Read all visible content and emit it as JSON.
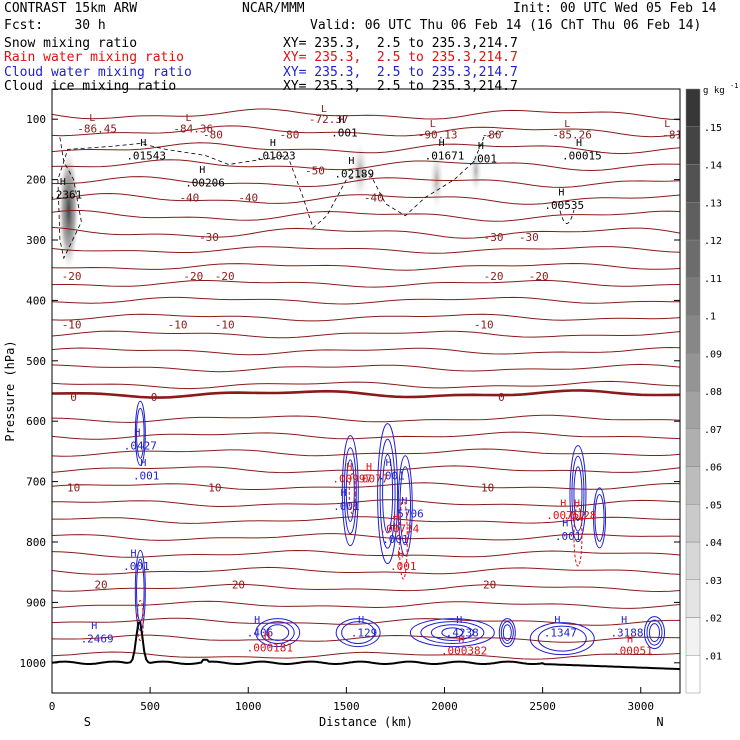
{
  "header": {
    "left1": "CONTRAST 15km ARW",
    "center1": "NCAR/MMM",
    "right1": "Init: 00 UTC Wed 05 Feb 14",
    "left2": "Fcst:    30 h",
    "right2": "Valid: 06 UTC Thu 06 Feb 14 (16 ChT Thu 06 Feb 14)",
    "legend": [
      {
        "label": "Snow mixing ratio",
        "xy": "XY= 235.3,  2.5 to 235.3,214.7",
        "color": "#000000"
      },
      {
        "label": "Rain water mixing ratio",
        "xy": "XY= 235.3,  2.5 to 235.3,214.7",
        "color": "#e01010"
      },
      {
        "label": "Cloud water mixing ratio",
        "xy": "XY= 235.3,  2.5 to 235.3,214.7",
        "color": "#1f1fd0"
      },
      {
        "label": "Cloud ice mixing ratio",
        "xy": "XY= 235.3,  2.5 to 235.3,214.7",
        "color": "#000000"
      }
    ]
  },
  "chart_data": {
    "type": "contour",
    "xlabel": "Distance (km)",
    "ylabel": "Pressure (hPa)",
    "xlim": [
      0,
      3200
    ],
    "ylim": [
      1050,
      50
    ],
    "x_ticks": [
      0,
      500,
      1000,
      1500,
      2000,
      2500,
      3000
    ],
    "y_ticks": [
      100,
      200,
      300,
      400,
      500,
      600,
      700,
      800,
      900,
      1000
    ],
    "x_end_labels": {
      "left": "S",
      "right": "N"
    },
    "colorbar": {
      "unit": "g kg",
      "unit_exp": "-1",
      "ticks": [
        ".01",
        ".02",
        ".03",
        ".04",
        ".05",
        ".06",
        ".07",
        ".08",
        ".09",
        ".1",
        ".11",
        ".12",
        ".13",
        ".14",
        ".15"
      ]
    },
    "temperature_contours": [
      {
        "level": "-80",
        "label_positions_km": [
          820,
          1210,
          2240
        ],
        "p": 125
      },
      {
        "level": "-50",
        "label_positions_km": [
          1340
        ],
        "p": 185
      },
      {
        "level": "-40",
        "label_positions_km": [
          700,
          1000,
          1640
        ],
        "p": 230
      },
      {
        "level": "-30",
        "label_positions_km": [
          800,
          2250,
          2430
        ],
        "p": 295
      },
      {
        "level": "-20",
        "label_positions_km": [
          100,
          720,
          880,
          2250,
          2480
        ],
        "p": 360
      },
      {
        "level": "-10",
        "label_positions_km": [
          100,
          640,
          880,
          2200
        ],
        "p": 440
      },
      {
        "level": "0",
        "label_positions_km": [
          110,
          520,
          2290
        ],
        "p": 560
      },
      {
        "level": "10",
        "label_positions_km": [
          110,
          830,
          2220
        ],
        "p": 710
      },
      {
        "level": "20",
        "label_positions_km": [
          250,
          950,
          2230
        ],
        "p": 870
      }
    ],
    "low_labels": [
      {
        "text": "-86.45",
        "x_km": 230,
        "p": 115
      },
      {
        "text": "-84.36",
        "x_km": 720,
        "p": 115
      },
      {
        "text": "-72.37",
        "x_km": 1410,
        "p": 100
      },
      {
        "text": "-90.13",
        "x_km": 1965,
        "p": 125
      },
      {
        "text": "-85.26",
        "x_km": 2650,
        "p": 125
      },
      {
        "text": "-81",
        "x_km": 3160,
        "p": 125
      }
    ],
    "ice_labels": [
      {
        "text": ".01543",
        "x_km": 480,
        "p": 160
      },
      {
        "text": ".00206",
        "x_km": 780,
        "p": 205
      },
      {
        "text": ".01023",
        "x_km": 1140,
        "p": 160
      },
      {
        "text": ".001",
        "x_km": 1490,
        "p": 122
      },
      {
        "text": ".02189",
        "x_km": 1540,
        "p": 190
      },
      {
        "text": ".01671",
        "x_km": 2000,
        "p": 160
      },
      {
        "text": ".001",
        "x_km": 2200,
        "p": 165
      },
      {
        "text": ".00015",
        "x_km": 2700,
        "p": 160
      },
      {
        "text": ".00535",
        "x_km": 2610,
        "p": 242
      },
      {
        "text": ".2361",
        "x_km": 70,
        "p": 225
      }
    ],
    "cloud_water_labels": [
      {
        "text": ".0427",
        "x_km": 450,
        "p": 640
      },
      {
        "text": ".001",
        "x_km": 480,
        "p": 690
      },
      {
        "text": ".001",
        "x_km": 430,
        "p": 840
      },
      {
        "text": ".001",
        "x_km": 1730,
        "p": 690
      },
      {
        "text": ".001",
        "x_km": 1500,
        "p": 740
      },
      {
        "text": ".5706",
        "x_km": 1810,
        "p": 753
      },
      {
        "text": ".001",
        "x_km": 1750,
        "p": 795
      },
      {
        "text": ".001",
        "x_km": 2630,
        "p": 790
      },
      {
        "text": ".2469",
        "x_km": 230,
        "p": 960
      },
      {
        "text": ".406",
        "x_km": 1060,
        "p": 950
      },
      {
        "text": ".129",
        "x_km": 1590,
        "p": 950
      },
      {
        "text": ".4238",
        "x_km": 2090,
        "p": 950
      },
      {
        "text": ".1347",
        "x_km": 2590,
        "p": 950
      },
      {
        "text": ".3188",
        "x_km": 2930,
        "p": 950
      }
    ],
    "rain_labels": [
      {
        "text": ".00997",
        "x_km": 1530,
        "p": 695
      },
      {
        "text": ".0077",
        "x_km": 1630,
        "p": 695
      },
      {
        "text": ".00734",
        "x_km": 1770,
        "p": 778
      },
      {
        "text": ".001",
        "x_km": 1790,
        "p": 840
      },
      {
        "text": ".0128",
        "x_km": 2690,
        "p": 755
      },
      {
        "text": ".00752",
        "x_km": 2620,
        "p": 755
      },
      {
        "text": ".000181",
        "x_km": 1110,
        "p": 975
      },
      {
        "text": ".000382",
        "x_km": 2100,
        "p": 980
      },
      {
        "text": ".00051",
        "x_km": 2960,
        "p": 980
      }
    ]
  }
}
